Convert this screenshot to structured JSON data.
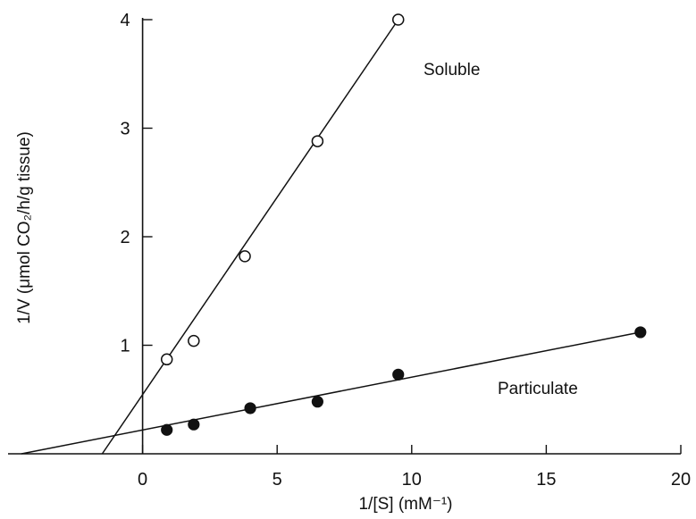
{
  "chart_data": {
    "type": "scatter",
    "xlabel": "1/[S] (mM⁻¹)",
    "ylabel": "1/V (μmol CO₂/h/g tissue)",
    "xlim": [
      -5,
      20
    ],
    "ylim": [
      0,
      4
    ],
    "x_ticks": [
      0,
      5,
      10,
      15,
      20
    ],
    "x_tick_labels": [
      "0",
      "5",
      "10",
      "15",
      "20"
    ],
    "y_ticks": [
      1,
      2,
      3,
      4
    ],
    "y_tick_labels": [
      "1",
      "2",
      "3",
      "4"
    ],
    "grid": false,
    "legend": "none",
    "series": [
      {
        "name": "Soluble",
        "marker": "open-circle",
        "x": [
          0.9,
          1.9,
          3.8,
          6.5,
          9.5
        ],
        "y": [
          0.87,
          1.04,
          1.82,
          2.88,
          4.0
        ],
        "fit_line": {
          "x": [
            -1.5,
            9.5
          ],
          "y": [
            0.0,
            4.0
          ]
        }
      },
      {
        "name": "Particulate",
        "marker": "filled-circle",
        "x": [
          0.9,
          1.9,
          4.0,
          6.5,
          9.5,
          18.5
        ],
        "y": [
          0.22,
          0.27,
          0.42,
          0.48,
          0.73,
          1.12
        ],
        "fit_line": {
          "x": [
            -4.5,
            18.5
          ],
          "y": [
            0.0,
            1.12
          ]
        }
      }
    ]
  }
}
